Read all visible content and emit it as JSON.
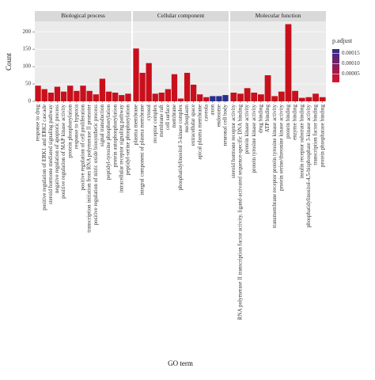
{
  "chart_data": {
    "type": "bar",
    "ylabel": "Count",
    "xlabel": "GO term",
    "ylim": [
      0,
      230
    ],
    "yticks": [
      0,
      50,
      100,
      150,
      200
    ],
    "grid": true,
    "facets": [
      {
        "title": "Biological process",
        "categories": [
          "response to drug",
          "positive regulation of ERK1 and ERK2 cascade",
          "steroid hormone mediated signaling pathway",
          "negative regulation of apoptotic process",
          "positive regulation of MAP kinase activity",
          "protein phosphorylation",
          "response to hypoxia",
          "positive regulation of cell proliferation",
          "transcription initiation from RNA polymerase II promoter",
          "positive regulation of nitric oxide biosynthetic process",
          "signal transduction",
          "peptidyl-tyrosine phosphorylation",
          "protein autophosphorylation",
          "intracellular receptor signaling pathway",
          "peptidyl-serine phosphorylation"
        ],
        "values": [
          45,
          35,
          25,
          42,
          28,
          45,
          30,
          45,
          30,
          20,
          65,
          28,
          25,
          18,
          22
        ],
        "colors": [
          "#c8101c",
          "#c8101c",
          "#c8101c",
          "#c8101c",
          "#c8101c",
          "#c8101c",
          "#c8101c",
          "#c8101c",
          "#c8101c",
          "#c8101c",
          "#c8101c",
          "#c8101c",
          "#c8101c",
          "#c8101c",
          "#c8101c"
        ]
      },
      {
        "title": "Cellular component",
        "categories": [
          "plasma membrane",
          "integral component of plasma membrane",
          "cytosol",
          "receptor complex",
          "membrane raft",
          "cell surface",
          "membrane",
          "phosphatidylinositol 3-kinase complex",
          "nucleoplasm",
          "extracellular space",
          "apical plasma membrane",
          "caveola",
          "axon",
          "endosome",
          "neuronal cell body"
        ],
        "values": [
          152,
          82,
          110,
          22,
          25,
          35,
          78,
          8,
          82,
          48,
          20,
          12,
          15,
          15,
          18
        ],
        "colors": [
          "#c8101c",
          "#c8101c",
          "#c8101c",
          "#c8101c",
          "#c8101c",
          "#c8101c",
          "#c8101c",
          "#c8101c",
          "#c8101c",
          "#c8101c",
          "#c8101c",
          "#c8101c",
          "#2b2d8c",
          "#2b2d8c",
          "#2b2d8c"
        ]
      },
      {
        "title": "Molecular function",
        "categories": [
          "steroid hormone receptor activity",
          "RNA polymerase II transcription factor activity, ligand-activated sequence-specific DNA binding",
          "protein kinase activity",
          "protein tyrosine kinase activity",
          "drug binding",
          "ATP binding",
          "transmembrane receptor protein tyrosine kinase activity",
          "protein serine/threonine kinase activity",
          "protein binding",
          "enzyme binding",
          "insulin receptor substrate binding",
          "phosphatidylinositol-4,5-bisphosphate 3-kinase activity",
          "transcription factor binding",
          "protein phosphatase binding"
        ],
        "values": [
          25,
          22,
          38,
          25,
          20,
          75,
          15,
          28,
          222,
          30,
          10,
          12,
          22,
          12
        ],
        "colors": [
          "#c8101c",
          "#c8101c",
          "#c8101c",
          "#c8101c",
          "#c8101c",
          "#c8101c",
          "#c8101c",
          "#c8101c",
          "#c8101c",
          "#c8101c",
          "#c8101c",
          "#c8101c",
          "#c8101c",
          "#c8101c"
        ]
      }
    ],
    "legend": {
      "title": "p.adjust",
      "ticks": [
        {
          "value": 5e-05,
          "label": "0.00005"
        },
        {
          "value": 0.0001,
          "label": "0.00010"
        },
        {
          "value": 0.00015,
          "label": "0.00015"
        }
      ],
      "clim": [
        1e-05,
        0.00017
      ],
      "colors": [
        "#e0102a",
        "#2b2d8c"
      ]
    }
  }
}
